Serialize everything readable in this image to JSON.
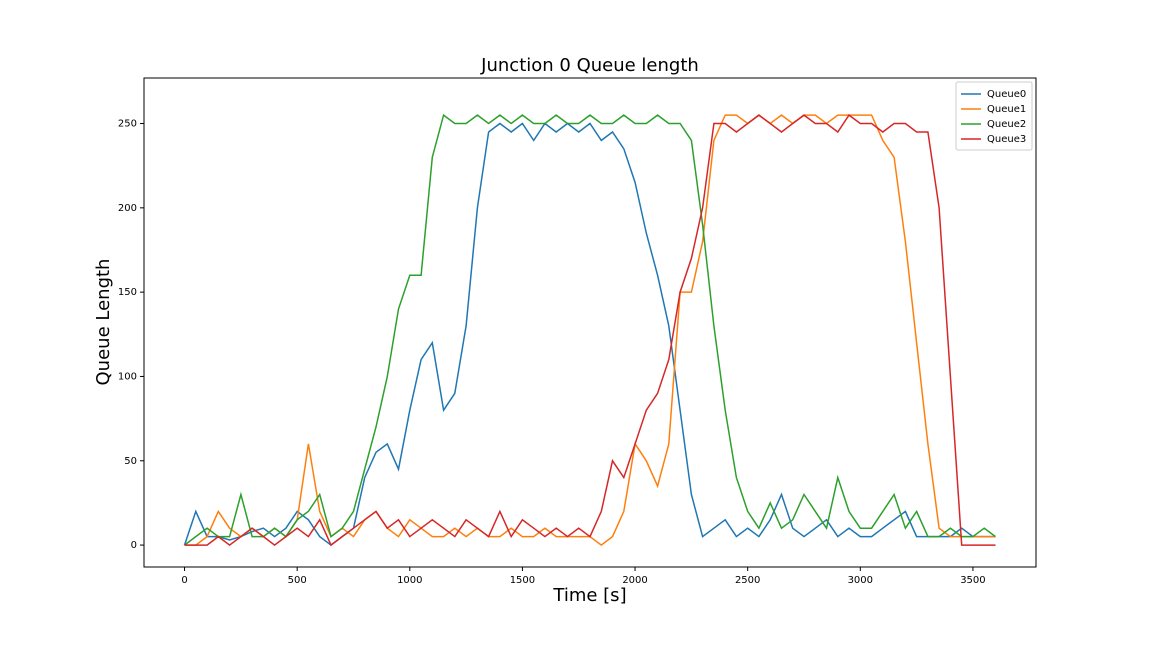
{
  "chart_data": {
    "type": "line",
    "title": "Junction 0 Queue length",
    "x_label": "Time [s]",
    "y_label": "Queue Length",
    "x": [
      0,
      50,
      100,
      150,
      200,
      250,
      300,
      350,
      400,
      450,
      500,
      550,
      600,
      650,
      700,
      750,
      800,
      850,
      900,
      950,
      1000,
      1050,
      1100,
      1150,
      1200,
      1250,
      1300,
      1350,
      1400,
      1450,
      1500,
      1550,
      1600,
      1650,
      1700,
      1750,
      1800,
      1850,
      1900,
      1950,
      2000,
      2050,
      2100,
      2150,
      2200,
      2250,
      2300,
      2350,
      2400,
      2450,
      2500,
      2550,
      2600,
      2650,
      2700,
      2750,
      2800,
      2850,
      2900,
      2950,
      3000,
      3050,
      3100,
      3150,
      3200,
      3250,
      3300,
      3350,
      3400,
      3450,
      3500,
      3550,
      3600
    ],
    "series": [
      {
        "name": "Queue0",
        "color": "#1f77b4",
        "values": [
          0,
          20,
          5,
          5,
          3,
          5,
          8,
          10,
          5,
          10,
          20,
          15,
          5,
          0,
          5,
          10,
          40,
          55,
          60,
          45,
          80,
          110,
          120,
          80,
          90,
          130,
          200,
          245,
          250,
          245,
          250,
          240,
          250,
          245,
          250,
          245,
          250,
          240,
          245,
          235,
          215,
          185,
          160,
          130,
          80,
          30,
          5,
          10,
          15,
          5,
          10,
          5,
          15,
          30,
          10,
          5,
          10,
          15,
          5,
          10,
          5,
          5,
          10,
          15,
          20,
          5,
          5,
          5,
          5,
          10,
          5,
          5,
          5
        ]
      },
      {
        "name": "Queue1",
        "color": "#ff7f0e",
        "values": [
          0,
          0,
          5,
          20,
          10,
          5,
          10,
          5,
          10,
          5,
          15,
          60,
          20,
          5,
          10,
          5,
          15,
          20,
          10,
          5,
          15,
          10,
          5,
          5,
          10,
          5,
          10,
          5,
          5,
          10,
          5,
          5,
          10,
          5,
          5,
          5,
          5,
          0,
          5,
          20,
          60,
          50,
          35,
          60,
          150,
          150,
          180,
          240,
          255,
          255,
          250,
          255,
          250,
          255,
          250,
          255,
          255,
          250,
          255,
          255,
          255,
          255,
          240,
          230,
          180,
          120,
          60,
          10,
          5,
          5,
          5,
          5,
          5
        ]
      },
      {
        "name": "Queue2",
        "color": "#2ca02c",
        "values": [
          0,
          5,
          10,
          5,
          5,
          30,
          5,
          5,
          10,
          5,
          15,
          20,
          30,
          5,
          10,
          20,
          45,
          70,
          100,
          140,
          160,
          160,
          230,
          255,
          250,
          250,
          255,
          250,
          255,
          250,
          255,
          250,
          250,
          255,
          250,
          250,
          255,
          250,
          250,
          255,
          250,
          250,
          255,
          250,
          250,
          240,
          190,
          130,
          80,
          40,
          20,
          10,
          25,
          10,
          15,
          30,
          20,
          10,
          40,
          20,
          10,
          10,
          20,
          30,
          10,
          20,
          5,
          5,
          10,
          5,
          5,
          10,
          5
        ]
      },
      {
        "name": "Queue3",
        "color": "#d62728",
        "values": [
          0,
          0,
          0,
          5,
          0,
          5,
          10,
          5,
          0,
          5,
          10,
          5,
          15,
          0,
          5,
          10,
          15,
          20,
          10,
          15,
          5,
          10,
          15,
          10,
          5,
          15,
          10,
          5,
          20,
          5,
          15,
          10,
          5,
          10,
          5,
          10,
          5,
          20,
          50,
          40,
          60,
          80,
          90,
          110,
          150,
          170,
          200,
          250,
          250,
          245,
          250,
          255,
          250,
          245,
          250,
          255,
          250,
          250,
          245,
          255,
          250,
          250,
          245,
          250,
          250,
          245,
          245,
          200,
          100,
          0,
          0,
          0,
          0
        ]
      }
    ],
    "xlim": [
      -180,
      3780
    ],
    "ylim": [
      -13,
      277
    ],
    "xticks": [
      0,
      500,
      1000,
      1500,
      2000,
      2500,
      3000,
      3500
    ],
    "yticks": [
      0,
      50,
      100,
      150,
      200,
      250
    ],
    "legend": "upper right"
  }
}
